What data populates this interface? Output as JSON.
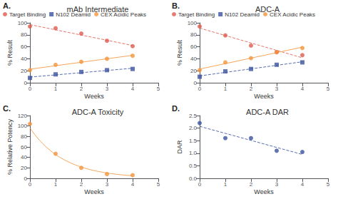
{
  "chart_data": [
    {
      "type": "scatter",
      "title": "mAb Intermediate",
      "annotation": "A.",
      "x_label": "Weeks",
      "y_label": "% Result",
      "xlim": [
        0,
        5
      ],
      "ylim": [
        0,
        100
      ],
      "xticks": [
        0,
        1,
        2,
        3,
        4,
        5
      ],
      "yticks": [
        0,
        20,
        40,
        60,
        80,
        100
      ],
      "grid": false,
      "legend": "top",
      "series": [
        {
          "type": "line",
          "color": "#E05A4E",
          "line_style": "dashed",
          "x": [
            0,
            4
          ],
          "values": [
            97.0,
            62.2
          ]
        },
        {
          "name": "Target Binding",
          "color": "#E05A4E",
          "marker": "circle",
          "x": [
            0,
            1,
            2,
            3,
            4
          ],
          "values": [
            94,
            91,
            82,
            70,
            61
          ]
        },
        {
          "type": "line",
          "color": "#3A52A0",
          "line_style": "dashed",
          "x": [
            0,
            4
          ],
          "values": [
            9.4,
            24.2
          ]
        },
        {
          "name": "N102 Deamid",
          "color": "#3A52A0",
          "marker": "square",
          "x": [
            0,
            1,
            2,
            3,
            4
          ],
          "values": [
            8,
            14,
            18,
            21,
            23
          ]
        },
        {
          "type": "line",
          "color": "#F4943A",
          "line_style": "solid",
          "x": [
            0,
            4
          ],
          "values": [
            22.6,
            45.8
          ]
        },
        {
          "name": "CEX Acidic Peaks",
          "color": "#F4943A",
          "marker": "circle",
          "x": [
            0,
            1,
            2,
            3,
            4
          ],
          "values": [
            21,
            30,
            35,
            40,
            45
          ]
        }
      ]
    },
    {
      "type": "scatter",
      "title": "ADC-A",
      "annotation": "B.",
      "x_label": "Weeks",
      "y_label": "% Result",
      "xlim": [
        0,
        5
      ],
      "ylim": [
        0,
        100
      ],
      "xticks": [
        0,
        1,
        2,
        3,
        4,
        5
      ],
      "yticks": [
        0,
        20,
        40,
        60,
        80,
        100
      ],
      "grid": false,
      "legend": "top",
      "series": [
        {
          "type": "line",
          "color": "#E05A4E",
          "line_style": "dashed",
          "x": [
            0,
            4
          ],
          "values": [
            91.2,
            41.6
          ]
        },
        {
          "name": "Target Binding",
          "color": "#E05A4E",
          "marker": "circle",
          "x": [
            0,
            1,
            2,
            3,
            4
          ],
          "values": [
            94,
            79,
            62,
            51,
            46
          ]
        },
        {
          "type": "line",
          "color": "#3A52A0",
          "line_style": "dashed",
          "x": [
            0,
            4
          ],
          "values": [
            11.4,
            35.0
          ]
        },
        {
          "name": "N102 Deamid",
          "color": "#3A52A0",
          "marker": "square",
          "x": [
            0,
            1,
            2,
            3,
            4
          ],
          "values": [
            10,
            19,
            23,
            30,
            34
          ]
        },
        {
          "type": "line",
          "color": "#F4943A",
          "line_style": "solid",
          "x": [
            0,
            4
          ],
          "values": [
            22.8,
            59.4
          ]
        },
        {
          "name": "CEX Acidic Peaks",
          "color": "#F4943A",
          "marker": "circle",
          "x": [
            0,
            1,
            2,
            3,
            4
          ],
          "values": [
            21,
            34,
            41,
            51,
            58
          ]
        }
      ]
    },
    {
      "type": "scatter",
      "title": "ADC-A Toxicity",
      "annotation": "C.",
      "x_label": "Weeks",
      "y_label": "% Relative Potency",
      "xlim": [
        0,
        5
      ],
      "ylim": [
        0,
        120
      ],
      "xticks": [
        0,
        1,
        2,
        3,
        4,
        5
      ],
      "yticks": [
        0,
        20,
        40,
        60,
        80,
        100,
        120
      ],
      "grid": false,
      "series": [
        {
          "type": "line",
          "color": "#F4943A",
          "line_style": "solid",
          "x": [
            0,
            0.25,
            0.5,
            0.75,
            1,
            1.25,
            1.5,
            1.75,
            2,
            2.25,
            2.5,
            2.75,
            3,
            3.25,
            3.5,
            3.75,
            4
          ],
          "values": [
            96.3,
            79.89,
            66.27,
            54.97,
            45.6,
            37.83,
            31.38,
            26.03,
            21.59,
            17.91,
            14.86,
            12.33,
            10.22,
            8.48,
            7.04,
            5.84,
            4.84
          ]
        },
        {
          "color": "#F4943A",
          "marker": "circle",
          "x": [
            0,
            1,
            2,
            3,
            4
          ],
          "values": [
            104,
            47,
            20,
            8,
            6
          ]
        }
      ]
    },
    {
      "type": "scatter",
      "title": "ADC-A DAR",
      "annotation": "D.",
      "x_label": "Weeks",
      "y_label": "DAR",
      "xlim": [
        0,
        5
      ],
      "ylim": [
        0.0,
        2.5
      ],
      "xticks": [
        0,
        1,
        2,
        3,
        4,
        5
      ],
      "yticks": [
        {
          "value": 0.0,
          "label": "0.0"
        },
        0.5,
        {
          "value": 1.0,
          "label": "1.0"
        },
        1.5,
        {
          "value": 2.0,
          "label": "2.0"
        },
        2.5
      ],
      "grid": false,
      "series": [
        {
          "type": "line",
          "color": "#3A52A0",
          "line_style": "dashed",
          "x": [
            0,
            4
          ],
          "values": [
            2.07,
            0.95
          ]
        },
        {
          "color": "#3A52A0",
          "marker": "circle",
          "x": [
            0,
            1,
            2,
            3,
            4
          ],
          "values": [
            2.2,
            1.6,
            1.6,
            1.1,
            1.05
          ]
        }
      ]
    }
  ]
}
